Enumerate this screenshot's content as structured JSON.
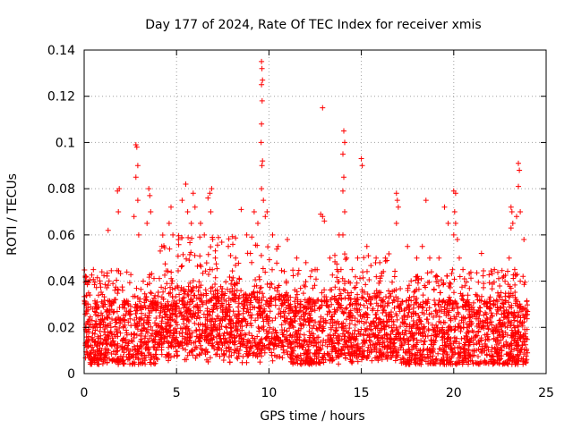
{
  "chart_data": {
    "type": "scatter",
    "title": "Day 177 of 2024, Rate Of TEC Index for receiver xmis",
    "xlabel": "GPS time / hours",
    "ylabel": "ROTI / TECUs",
    "xlim": [
      0,
      25
    ],
    "ylim": [
      0,
      0.14
    ],
    "xticks": [
      0,
      5,
      10,
      15,
      20,
      25
    ],
    "xtick_labels": [
      "0",
      "5",
      "10",
      "15",
      "20",
      "25"
    ],
    "yticks": [
      0,
      0.02,
      0.04,
      0.06,
      0.08,
      0.1,
      0.12,
      0.14
    ],
    "ytick_labels": [
      "0",
      "0.02",
      "0.04",
      "0.06",
      "0.08",
      "0.1",
      "0.12",
      "0.14"
    ],
    "grid": true,
    "marker": "plus",
    "color": "#ff0000",
    "background_band": {
      "y_from": 0.004,
      "y_to": 0.032,
      "density": "dense"
    },
    "x_extent": [
      0,
      24
    ],
    "series": [
      {
        "points": [
          [
            0.2,
            0.04
          ],
          [
            0.5,
            0.045
          ],
          [
            1.3,
            0.062
          ],
          [
            1.8,
            0.079
          ],
          [
            1.9,
            0.08
          ],
          [
            1.85,
            0.07
          ],
          [
            2.8,
            0.099
          ],
          [
            2.85,
            0.098
          ],
          [
            2.9,
            0.09
          ],
          [
            2.8,
            0.085
          ],
          [
            2.9,
            0.075
          ],
          [
            2.7,
            0.068
          ],
          [
            2.95,
            0.06
          ],
          [
            3.5,
            0.08
          ],
          [
            3.55,
            0.077
          ],
          [
            3.6,
            0.07
          ],
          [
            3.4,
            0.065
          ],
          [
            3.2,
            0.04
          ],
          [
            4.2,
            0.055
          ],
          [
            4.6,
            0.065
          ],
          [
            4.7,
            0.072
          ],
          [
            4.8,
            0.06
          ],
          [
            5.1,
            0.058
          ],
          [
            5.3,
            0.075
          ],
          [
            5.5,
            0.082
          ],
          [
            5.6,
            0.07
          ],
          [
            5.8,
            0.065
          ],
          [
            5.9,
            0.078
          ],
          [
            6.0,
            0.072
          ],
          [
            6.3,
            0.065
          ],
          [
            6.5,
            0.06
          ],
          [
            6.7,
            0.076
          ],
          [
            6.8,
            0.078
          ],
          [
            6.9,
            0.08
          ],
          [
            6.85,
            0.07
          ],
          [
            7.1,
            0.05
          ],
          [
            7.8,
            0.055
          ],
          [
            8.2,
            0.05
          ],
          [
            8.5,
            0.071
          ],
          [
            8.8,
            0.06
          ],
          [
            9.2,
            0.07
          ],
          [
            9.4,
            0.065
          ],
          [
            9.6,
            0.135
          ],
          [
            9.62,
            0.132
          ],
          [
            9.65,
            0.127
          ],
          [
            9.6,
            0.125
          ],
          [
            9.63,
            0.118
          ],
          [
            9.6,
            0.108
          ],
          [
            9.58,
            0.1
          ],
          [
            9.65,
            0.092
          ],
          [
            9.62,
            0.09
          ],
          [
            9.6,
            0.08
          ],
          [
            9.7,
            0.075
          ],
          [
            9.8,
            0.068
          ],
          [
            9.9,
            0.07
          ],
          [
            10.2,
            0.06
          ],
          [
            10.5,
            0.055
          ],
          [
            11.0,
            0.058
          ],
          [
            11.5,
            0.05
          ],
          [
            12.0,
            0.048
          ],
          [
            12.5,
            0.045
          ],
          [
            12.9,
            0.115
          ],
          [
            12.8,
            0.069
          ],
          [
            12.9,
            0.068
          ],
          [
            13.0,
            0.066
          ],
          [
            13.3,
            0.05
          ],
          [
            13.9,
            0.045
          ],
          [
            14.05,
            0.105
          ],
          [
            14.1,
            0.1
          ],
          [
            14.0,
            0.095
          ],
          [
            14.05,
            0.085
          ],
          [
            14.0,
            0.079
          ],
          [
            14.1,
            0.07
          ],
          [
            14.0,
            0.06
          ],
          [
            13.8,
            0.06
          ],
          [
            14.2,
            0.05
          ],
          [
            14.5,
            0.045
          ],
          [
            14.8,
            0.05
          ],
          [
            15.0,
            0.093
          ],
          [
            15.05,
            0.09
          ],
          [
            15.3,
            0.055
          ],
          [
            15.8,
            0.05
          ],
          [
            16.0,
            0.048
          ],
          [
            16.3,
            0.05
          ],
          [
            16.9,
            0.078
          ],
          [
            16.95,
            0.075
          ],
          [
            17.0,
            0.072
          ],
          [
            16.9,
            0.065
          ],
          [
            17.5,
            0.055
          ],
          [
            18.0,
            0.05
          ],
          [
            18.3,
            0.055
          ],
          [
            18.5,
            0.075
          ],
          [
            18.7,
            0.05
          ],
          [
            19.2,
            0.05
          ],
          [
            19.5,
            0.072
          ],
          [
            19.7,
            0.065
          ],
          [
            20.0,
            0.079
          ],
          [
            20.1,
            0.078
          ],
          [
            20.05,
            0.07
          ],
          [
            20.1,
            0.065
          ],
          [
            20.0,
            0.06
          ],
          [
            20.2,
            0.058
          ],
          [
            20.3,
            0.05
          ],
          [
            20.5,
            0.045
          ],
          [
            21.5,
            0.052
          ],
          [
            22.2,
            0.045
          ],
          [
            23.0,
            0.05
          ],
          [
            23.1,
            0.072
          ],
          [
            23.15,
            0.07
          ],
          [
            23.2,
            0.065
          ],
          [
            23.1,
            0.063
          ],
          [
            23.4,
            0.068
          ],
          [
            23.5,
            0.091
          ],
          [
            23.55,
            0.088
          ],
          [
            23.5,
            0.081
          ],
          [
            23.6,
            0.07
          ],
          [
            23.8,
            0.058
          ],
          [
            23.3,
            0.045
          ],
          [
            23.6,
            0.04
          ]
        ]
      }
    ]
  }
}
